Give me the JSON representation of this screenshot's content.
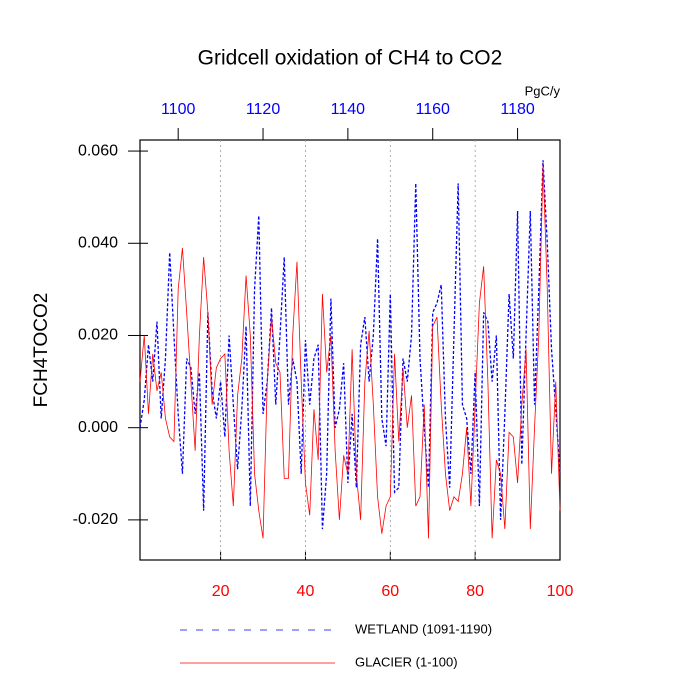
{
  "chart_data": {
    "type": "line",
    "title": "Gridcell oxidation of CH4 to CO2",
    "y_label": "FCH4TOCO2",
    "units": "PgC/y",
    "xlim": [
      1,
      100
    ],
    "xticks": [
      20,
      40,
      60,
      80,
      100
    ],
    "x_tick_color": "#ff0000",
    "x2lim": [
      1091,
      1190
    ],
    "x2ticks": [
      1100,
      1120,
      1140,
      1160,
      1180
    ],
    "x2_tick_color": "#0000ff",
    "ylim": [
      -0.0287,
      0.0624
    ],
    "yticks": [
      {
        "value": -0.02,
        "label": "-0.020"
      },
      {
        "value": 0,
        "label": "0.000"
      },
      {
        "value": 0.02,
        "label": "0.020"
      },
      {
        "value": 0.04,
        "label": "0.040"
      },
      {
        "value": 0.06,
        "label": "0.060"
      }
    ],
    "grid": true,
    "series": [
      {
        "name": "WETLAND (1091-1190)",
        "color": "#0000ff",
        "dashed": true,
        "axis": "x2",
        "x": [
          1091,
          1092,
          1093,
          1094,
          1095,
          1096,
          1097,
          1098,
          1099,
          1100,
          1101,
          1102,
          1103,
          1104,
          1105,
          1106,
          1107,
          1108,
          1109,
          1110,
          1111,
          1112,
          1113,
          1114,
          1115,
          1116,
          1117,
          1118,
          1119,
          1120,
          1121,
          1122,
          1123,
          1124,
          1125,
          1126,
          1127,
          1128,
          1129,
          1130,
          1131,
          1132,
          1133,
          1134,
          1135,
          1136,
          1137,
          1138,
          1139,
          1140,
          1141,
          1142,
          1143,
          1144,
          1145,
          1146,
          1147,
          1148,
          1149,
          1150,
          1151,
          1152,
          1153,
          1154,
          1155,
          1156,
          1157,
          1158,
          1159,
          1160,
          1161,
          1162,
          1163,
          1164,
          1165,
          1166,
          1167,
          1168,
          1169,
          1170,
          1171,
          1172,
          1173,
          1174,
          1175,
          1176,
          1177,
          1178,
          1179,
          1180,
          1181,
          1182,
          1183,
          1184,
          1185,
          1186,
          1187,
          1188,
          1189,
          1190
        ],
        "values": [
          0.0,
          0.006,
          0.018,
          0.01,
          0.023,
          0.002,
          0.015,
          0.038,
          0.02,
          0.003,
          -0.01,
          0.015,
          0.013,
          0.003,
          0.012,
          -0.018,
          0.025,
          0.008,
          0.002,
          0.01,
          -0.002,
          0.02,
          0.005,
          -0.009,
          0.004,
          0.022,
          -0.017,
          0.03,
          0.046,
          0.003,
          0.01,
          0.026,
          0.005,
          0.02,
          0.037,
          0.005,
          0.015,
          0.01,
          -0.01,
          0.019,
          0.005,
          0.015,
          0.018,
          -0.022,
          -0.01,
          0.028,
          0.0,
          0.004,
          0.014,
          -0.012,
          0.003,
          -0.013,
          0.018,
          0.024,
          0.01,
          0.02,
          0.041,
          0.002,
          -0.004,
          0.029,
          -0.014,
          -0.013,
          0.015,
          0.01,
          0.02,
          0.053,
          0.015,
          0.0,
          -0.013,
          0.025,
          0.027,
          0.031,
          0.002,
          -0.013,
          0.02,
          0.053,
          0.005,
          0.002,
          -0.01,
          0.012,
          -0.017,
          0.025,
          0.023,
          0.01,
          0.02,
          -0.02,
          0.003,
          0.029,
          0.015,
          0.047,
          -0.008,
          0.02,
          0.047,
          0.005,
          0.03,
          0.058,
          0.04,
          0.017,
          0.004,
          -0.01
        ]
      },
      {
        "name": "GLACIER (1-100)",
        "color": "#ff0000",
        "dashed": false,
        "axis": "x",
        "x": [
          1,
          2,
          3,
          4,
          5,
          6,
          7,
          8,
          9,
          10,
          11,
          12,
          13,
          14,
          15,
          16,
          17,
          18,
          19,
          20,
          21,
          22,
          23,
          24,
          25,
          26,
          27,
          28,
          29,
          30,
          31,
          32,
          33,
          34,
          35,
          36,
          37,
          38,
          39,
          40,
          41,
          42,
          43,
          44,
          45,
          46,
          47,
          48,
          49,
          50,
          51,
          52,
          53,
          54,
          55,
          56,
          57,
          58,
          59,
          60,
          61,
          62,
          63,
          64,
          65,
          66,
          67,
          68,
          69,
          70,
          71,
          72,
          73,
          74,
          75,
          76,
          77,
          78,
          79,
          80,
          81,
          82,
          83,
          84,
          85,
          86,
          87,
          88,
          89,
          90,
          91,
          92,
          93,
          94,
          95,
          96,
          97,
          98,
          99,
          100
        ],
        "values": [
          0.01,
          0.02,
          0.003,
          0.016,
          0.008,
          0.012,
          0.002,
          -0.002,
          -0.003,
          0.03,
          0.039,
          0.025,
          0.01,
          -0.005,
          0.02,
          0.037,
          0.025,
          0.005,
          0.013,
          0.015,
          0.016,
          -0.005,
          -0.017,
          0.007,
          0.015,
          0.033,
          0.02,
          -0.01,
          -0.018,
          -0.024,
          0.01,
          0.024,
          0.014,
          0.012,
          -0.011,
          -0.011,
          0.02,
          0.036,
          0.01,
          -0.012,
          -0.019,
          0.004,
          -0.007,
          0.029,
          0.012,
          0.02,
          -0.005,
          -0.02,
          -0.006,
          -0.01,
          0.017,
          -0.01,
          -0.02,
          0.01,
          0.021,
          0.005,
          -0.015,
          -0.023,
          -0.017,
          -0.015,
          0.016,
          -0.003,
          0.013,
          0.0,
          0.007,
          -0.017,
          -0.015,
          0.005,
          -0.024,
          0.022,
          0.024,
          0.005,
          -0.01,
          -0.018,
          -0.015,
          -0.016,
          -0.01,
          0.0,
          -0.017,
          0.005,
          0.027,
          0.035,
          0.01,
          -0.024,
          -0.007,
          -0.01,
          -0.022,
          -0.001,
          -0.002,
          -0.012,
          0.005,
          0.017,
          -0.022,
          0.0,
          0.02,
          0.057,
          0.03,
          -0.01,
          0.01,
          -0.018
        ]
      }
    ]
  }
}
